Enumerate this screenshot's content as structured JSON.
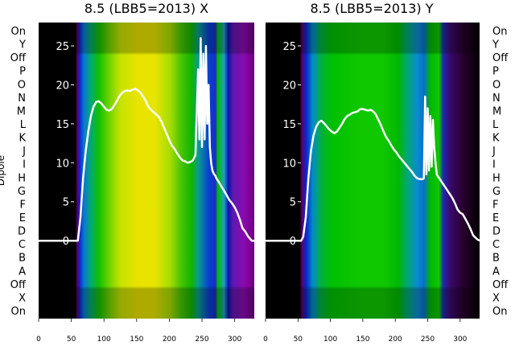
{
  "chart_data": [
    {
      "type": "heatmap",
      "title": "8.5 (LBB5=2013) X",
      "ylabel": "Dipole",
      "row_labels": [
        "On",
        "Y",
        "Off",
        "P",
        "O",
        "N",
        "M",
        "L",
        "K",
        "J",
        "I",
        "H",
        "G",
        "F",
        "E",
        "D",
        "C",
        "B",
        "A",
        "Off",
        "X",
        "On"
      ],
      "x_ticks": [
        0,
        50,
        100,
        150,
        200,
        250,
        300
      ],
      "xlim": [
        0,
        330
      ],
      "overlay_ticks": [
        0,
        5,
        10,
        15,
        20,
        25
      ],
      "overlay_ylim": [
        -10,
        28
      ],
      "line_color": "#ffffff",
      "line": {
        "x": [
          0,
          60,
          64,
          68,
          72,
          76,
          80,
          84,
          88,
          92,
          96,
          100,
          104,
          108,
          112,
          116,
          120,
          124,
          128,
          132,
          136,
          140,
          144,
          148,
          152,
          156,
          160,
          164,
          168,
          172,
          176,
          180,
          184,
          188,
          192,
          196,
          200,
          204,
          208,
          212,
          216,
          220,
          224,
          228,
          232,
          236,
          240,
          244,
          246,
          248,
          250,
          252,
          254,
          256,
          258,
          260,
          262,
          264,
          266,
          268,
          270,
          272,
          276,
          280,
          284,
          288,
          292,
          296,
          300,
          304,
          308,
          312,
          316,
          320,
          326,
          330
        ],
        "y": [
          0,
          0,
          3,
          8,
          11.5,
          14,
          16,
          17.2,
          17.8,
          17.9,
          17.6,
          17.2,
          16.8,
          16.7,
          16.9,
          17.4,
          18,
          18.6,
          19,
          19.2,
          19.3,
          19.2,
          19.4,
          19.5,
          19.3,
          19,
          18.5,
          17.9,
          17.2,
          16.8,
          16.5,
          16.2,
          15.9,
          15.3,
          14.5,
          13.7,
          12.9,
          12.2,
          11.8,
          11.2,
          10.7,
          10.3,
          10.2,
          10,
          10.1,
          10.3,
          11,
          22,
          13,
          26,
          12,
          24,
          13,
          25,
          15,
          20,
          12,
          10,
          9,
          8.6,
          8.4,
          8,
          7.5,
          6.9,
          6.4,
          5.8,
          5.2,
          4.8,
          4.3,
          3.6,
          2.7,
          1.6,
          1.2,
          0.6,
          0,
          0
        ]
      }
    },
    {
      "type": "heatmap",
      "title": "8.5 (LBB5=2013) Y",
      "row_labels": [
        "On",
        "Y",
        "Off",
        "P",
        "O",
        "N",
        "M",
        "L",
        "K",
        "J",
        "I",
        "H",
        "G",
        "F",
        "E",
        "D",
        "C",
        "B",
        "A",
        "Off",
        "X",
        "On"
      ],
      "x_ticks": [
        0,
        50,
        100,
        150,
        200,
        250,
        300
      ],
      "xlim": [
        0,
        330
      ],
      "overlay_ticks": [
        0,
        5,
        10,
        15,
        20,
        25
      ],
      "overlay_ylim": [
        -10,
        28
      ],
      "line_color": "#ffffff",
      "line": {
        "x": [
          0,
          55,
          58,
          62,
          66,
          70,
          74,
          78,
          82,
          86,
          90,
          94,
          98,
          102,
          106,
          110,
          114,
          118,
          122,
          126,
          130,
          134,
          138,
          142,
          146,
          150,
          154,
          158,
          162,
          166,
          170,
          174,
          178,
          182,
          186,
          190,
          194,
          198,
          202,
          206,
          210,
          214,
          218,
          222,
          226,
          230,
          234,
          238,
          242,
          244,
          246,
          248,
          250,
          252,
          254,
          256,
          258,
          260,
          262,
          264,
          266,
          268,
          272,
          276,
          280,
          284,
          288,
          292,
          296,
          300,
          304,
          308,
          312,
          316,
          320,
          326,
          330
        ],
        "y": [
          0,
          0,
          0.5,
          3,
          8,
          11.5,
          13.5,
          14.6,
          15.2,
          15.4,
          15.1,
          14.7,
          14.3,
          14,
          13.8,
          14,
          14.5,
          15,
          15.6,
          16,
          16.2,
          16.4,
          16.5,
          16.6,
          16.9,
          16.9,
          16.8,
          16.7,
          16.8,
          16.6,
          16.2,
          15.5,
          14.8,
          14,
          13.3,
          12.8,
          12.2,
          11.7,
          11.3,
          10.8,
          10.4,
          10,
          9.6,
          9.2,
          8.8,
          8.3,
          8,
          7.9,
          7.9,
          8,
          18.5,
          8.5,
          17,
          9,
          16,
          9.5,
          15.5,
          12,
          10,
          8.5,
          8.2,
          8,
          7.5,
          7,
          6.5,
          6,
          5.5,
          4.8,
          4,
          3.6,
          3.4,
          2.8,
          2.2,
          1.5,
          0.7,
          0.2,
          0
        ]
      }
    }
  ]
}
